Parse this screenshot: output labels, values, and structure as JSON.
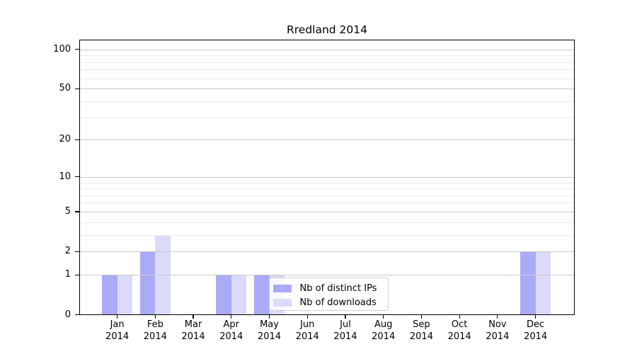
{
  "chart_data": {
    "type": "bar",
    "title": "Rredland 2014",
    "categories": [
      "Jan",
      "Feb",
      "Mar",
      "Apr",
      "May",
      "Jun",
      "Jul",
      "Aug",
      "Sep",
      "Oct",
      "Nov",
      "Dec"
    ],
    "category_year": "2014",
    "series": [
      {
        "name": "Nb of distinct IPs",
        "color": "#aaaaf7",
        "values": [
          1,
          2,
          0,
          1,
          1,
          0,
          0,
          0,
          0,
          0,
          0,
          2
        ]
      },
      {
        "name": "Nb of downloads",
        "color": "#dbdbf9",
        "values": [
          1,
          3,
          0,
          1,
          1,
          0,
          0,
          0,
          0,
          0,
          0,
          2
        ]
      }
    ],
    "y_axis": {
      "scale": "log1p",
      "major_ticks": [
        0,
        1,
        2,
        5,
        10,
        20,
        50,
        100
      ],
      "minor_gridlines": [
        3,
        4,
        6,
        7,
        8,
        9,
        30,
        40,
        60,
        70,
        80,
        90
      ],
      "ylim": [
        0,
        117
      ]
    },
    "x_axis": {
      "label_format": "month-over-year"
    },
    "legend": {
      "position": "inside-bottom-center"
    },
    "style": {
      "major_grid_color": "#c9c9c9",
      "minor_grid_color": "#ececec",
      "spine_color": "#000000",
      "background": "#ffffff"
    }
  }
}
